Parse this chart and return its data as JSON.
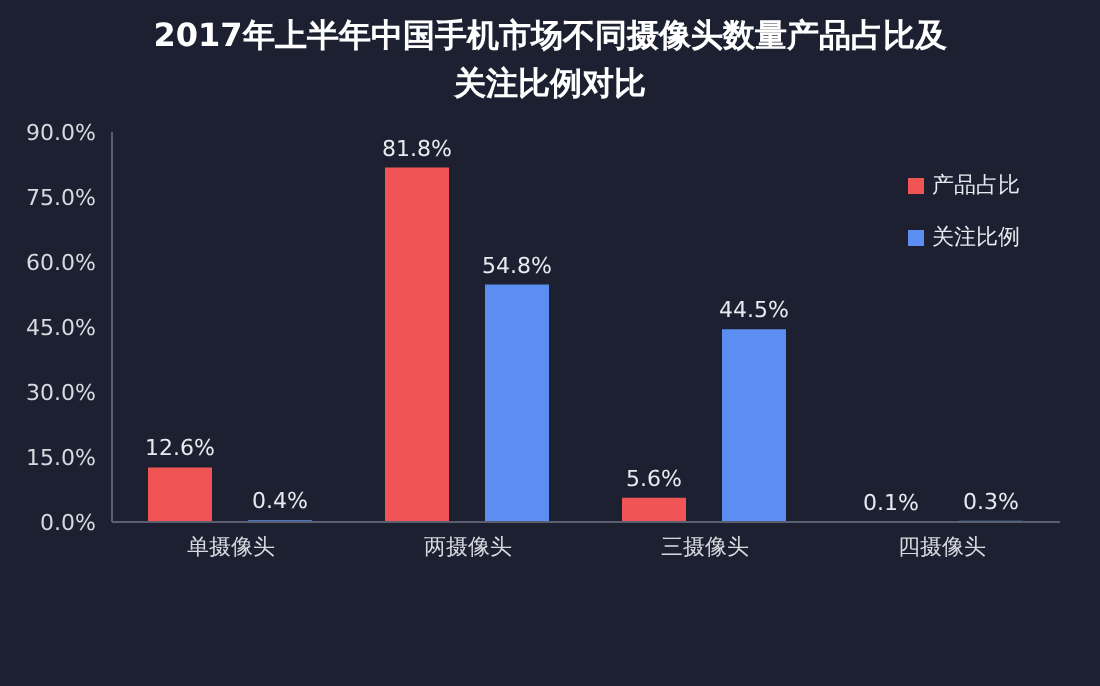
{
  "chart_data": {
    "type": "bar",
    "title": "2017年上半年中国手机市场不同摄像头数量产品占比及关注比例对比",
    "categories": [
      "单摄像头",
      "两摄像头",
      "三摄像头",
      "四摄像头"
    ],
    "series": [
      {
        "name": "产品占比",
        "color": "#f05454",
        "values": [
          12.6,
          81.8,
          5.6,
          0.1
        ],
        "value_labels": [
          "12.6%",
          "81.8%",
          "5.6%",
          "0.1%"
        ]
      },
      {
        "name": "关注比例",
        "color": "#5b8ef0",
        "values": [
          0.4,
          54.8,
          44.5,
          0.3
        ],
        "value_labels": [
          "0.4%",
          "54.8%",
          "44.5%",
          "0.3%"
        ]
      }
    ],
    "ylim": [
      0,
      90
    ],
    "yticks": [
      {
        "value": 0,
        "label": "0.0%"
      },
      {
        "value": 15,
        "label": "15.0%"
      },
      {
        "value": 30,
        "label": "30.0%"
      },
      {
        "value": 45,
        "label": "45.0%"
      },
      {
        "value": 60,
        "label": "60.0%"
      },
      {
        "value": 75,
        "label": "75.0%"
      },
      {
        "value": 90,
        "label": "90.0%"
      }
    ],
    "legend": "top right"
  }
}
